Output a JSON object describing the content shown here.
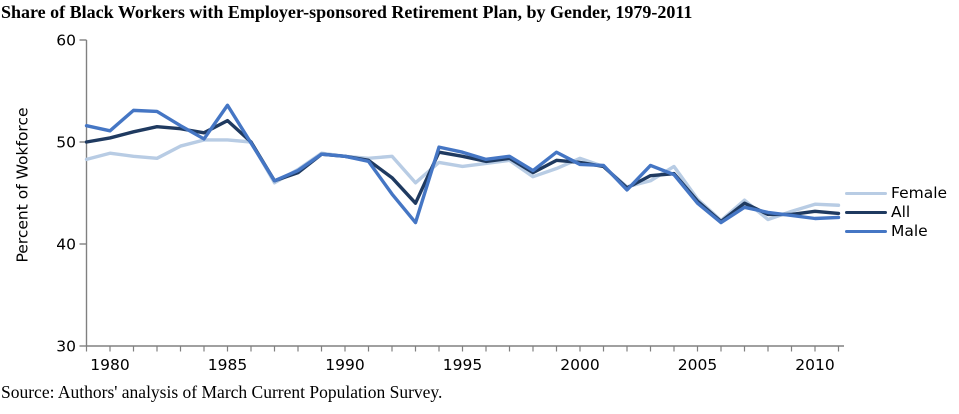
{
  "source_note": "Source: Authors' analysis of March Current Population Survey.",
  "chart_data": {
    "type": "line",
    "title": "Share of Black Workers with Employer-sponsored Retirement Plan, by Gender, 1979-2011",
    "xlabel": "",
    "ylabel": "Percent of Wokforce",
    "xlim": [
      1979,
      2011
    ],
    "ylim": [
      30,
      60
    ],
    "y_ticks": [
      30,
      40,
      50,
      60
    ],
    "x_tick_labels": [
      1980,
      1985,
      1990,
      1995,
      2000,
      2005,
      2010
    ],
    "grid": false,
    "legend_position": "right",
    "x": [
      1979,
      1980,
      1981,
      1982,
      1983,
      1984,
      1985,
      1986,
      1987,
      1988,
      1989,
      1990,
      1991,
      1992,
      1993,
      1994,
      1995,
      1996,
      1997,
      1998,
      1999,
      2000,
      2001,
      2002,
      2003,
      2004,
      2005,
      2006,
      2007,
      2008,
      2009,
      2010,
      2011
    ],
    "series": [
      {
        "name": "Female",
        "color": "#b8cce4",
        "values": [
          48.3,
          48.9,
          48.6,
          48.4,
          49.6,
          50.2,
          50.2,
          50.0,
          46.0,
          47.3,
          48.9,
          48.6,
          48.4,
          48.6,
          46.0,
          48.0,
          47.6,
          47.9,
          48.2,
          46.6,
          47.4,
          48.4,
          47.6,
          45.6,
          46.2,
          47.6,
          44.4,
          42.3,
          44.3,
          42.4,
          43.2,
          43.9,
          43.8
        ]
      },
      {
        "name": "All",
        "color": "#1f3a60",
        "values": [
          50.0,
          50.4,
          51.0,
          51.5,
          51.3,
          50.9,
          52.1,
          50.0,
          46.2,
          47.0,
          48.8,
          48.6,
          48.2,
          46.5,
          44.0,
          49.0,
          48.6,
          48.1,
          48.4,
          47.0,
          48.2,
          48.0,
          47.6,
          45.5,
          46.7,
          46.9,
          44.2,
          42.2,
          44.0,
          42.9,
          42.9,
          43.2,
          43.0
        ]
      },
      {
        "name": "Male",
        "color": "#4576c4",
        "values": [
          51.6,
          51.1,
          53.1,
          53.0,
          51.6,
          50.3,
          53.6,
          49.9,
          46.2,
          47.2,
          48.8,
          48.6,
          48.1,
          44.9,
          42.1,
          49.5,
          49.0,
          48.3,
          48.6,
          47.2,
          49.0,
          47.8,
          47.7,
          45.3,
          47.7,
          46.8,
          44.0,
          42.1,
          43.6,
          43.1,
          42.8,
          42.5,
          42.6
        ]
      }
    ]
  }
}
